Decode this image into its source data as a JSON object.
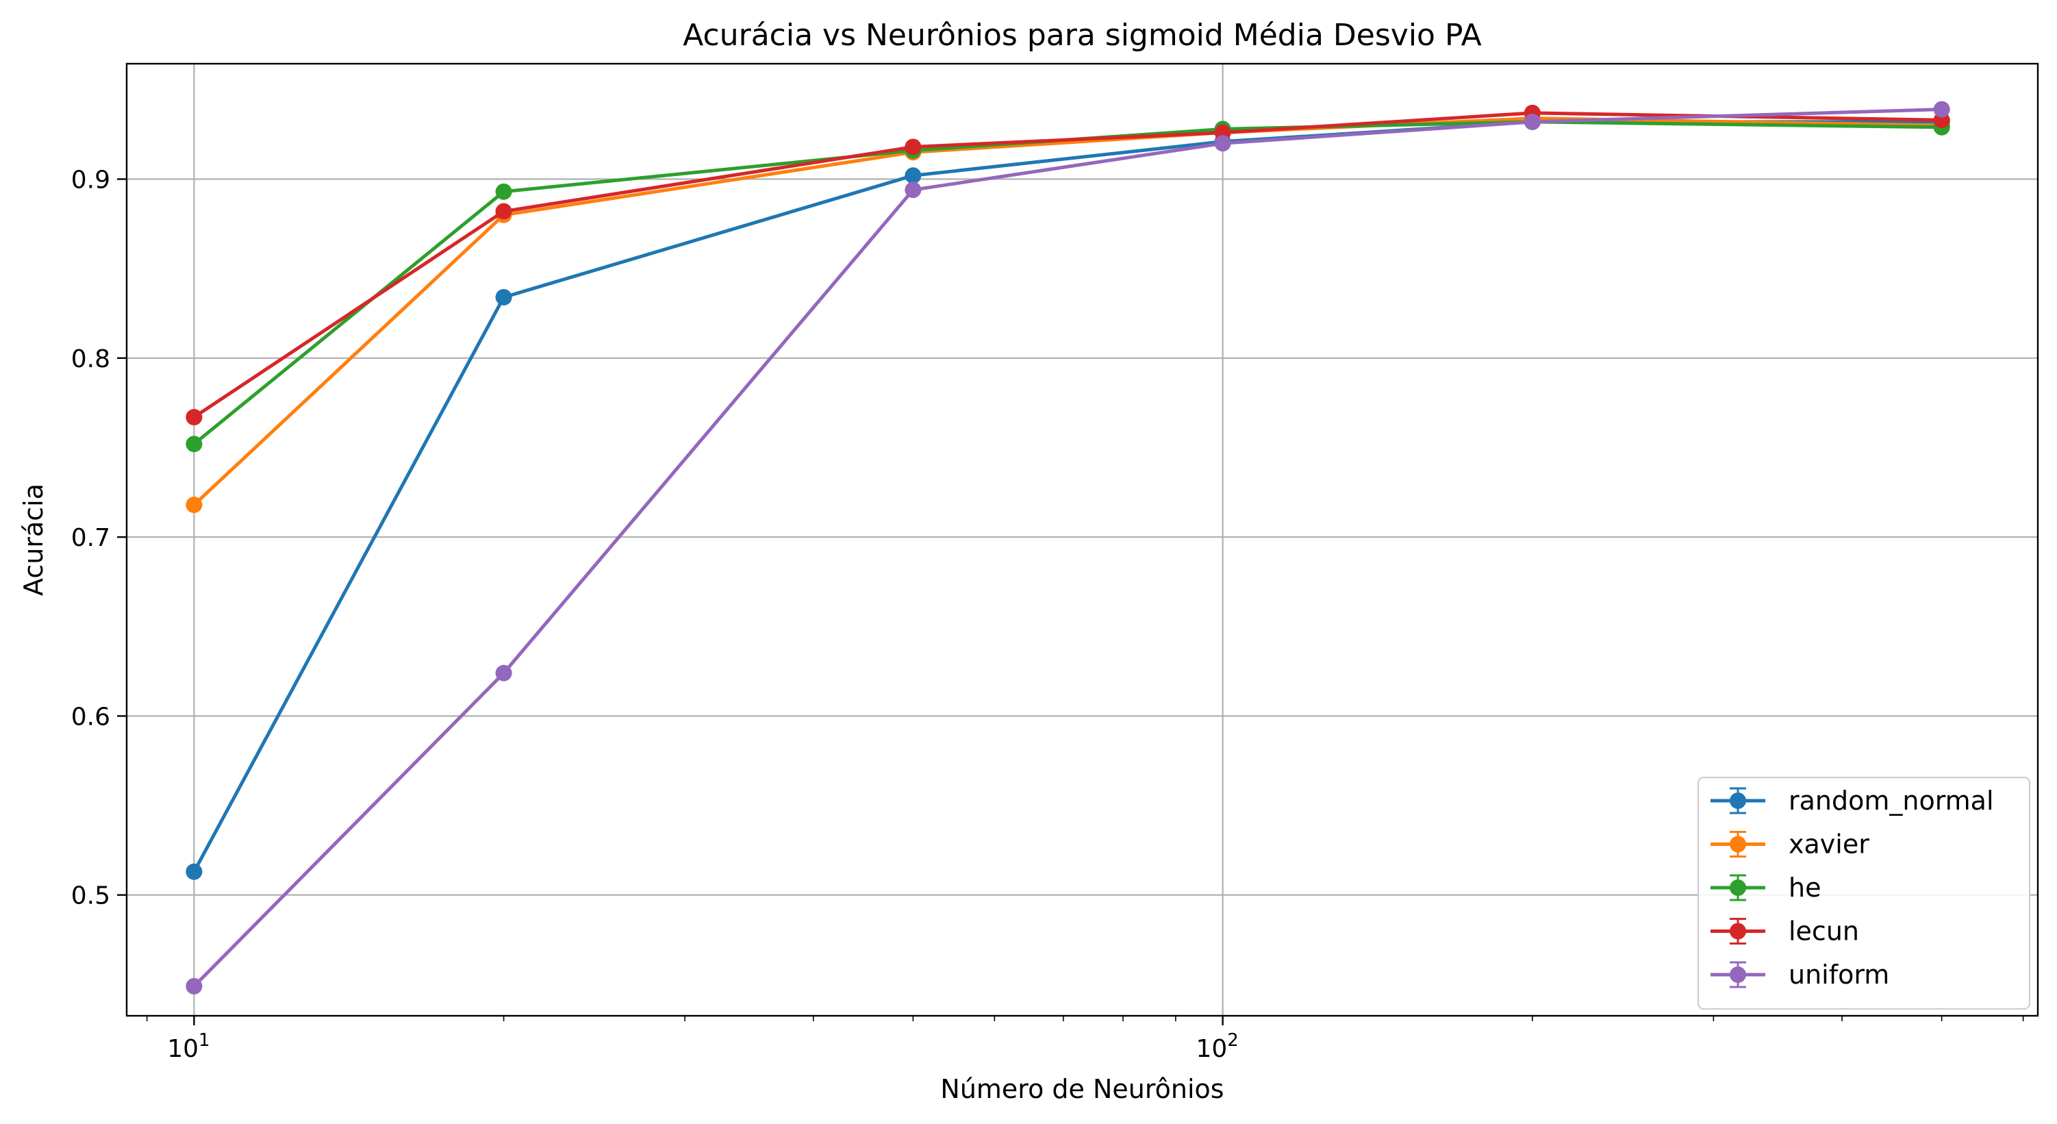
{
  "chart_data": {
    "type": "line",
    "title": "Acurácia vs Neurônios para sigmoid Média Desvio PA",
    "xlabel": "Número de Neurônios",
    "ylabel": "Acurácia",
    "xscale": "log",
    "xlim": [
      8.6,
      620
    ],
    "ylim": [
      0.4325,
      0.9645
    ],
    "x_ticks": [
      {
        "base": "10",
        "exp": "1",
        "value": 10
      },
      {
        "base": "10",
        "exp": "2",
        "value": 100
      }
    ],
    "y_ticks": [
      "0.5",
      "0.6",
      "0.7",
      "0.8",
      "0.9"
    ],
    "grid": true,
    "legend_position": "lower right",
    "x": [
      10,
      20,
      50,
      100,
      200,
      500
    ],
    "series": [
      {
        "name": "random_normal",
        "color": "#1f77b4",
        "values": [
          0.513,
          0.834,
          0.902,
          0.921,
          0.932,
          0.932
        ]
      },
      {
        "name": "xavier",
        "color": "#ff7f0e",
        "values": [
          0.718,
          0.88,
          0.915,
          0.926,
          0.934,
          0.93
        ]
      },
      {
        "name": "he",
        "color": "#2ca02c",
        "values": [
          0.752,
          0.893,
          0.916,
          0.928,
          0.932,
          0.929
        ]
      },
      {
        "name": "lecun",
        "color": "#d62728",
        "values": [
          0.767,
          0.882,
          0.918,
          0.926,
          0.937,
          0.933
        ]
      },
      {
        "name": "uniform",
        "color": "#9467bd",
        "values": [
          0.449,
          0.624,
          0.894,
          0.92,
          0.932,
          0.939
        ]
      }
    ]
  }
}
